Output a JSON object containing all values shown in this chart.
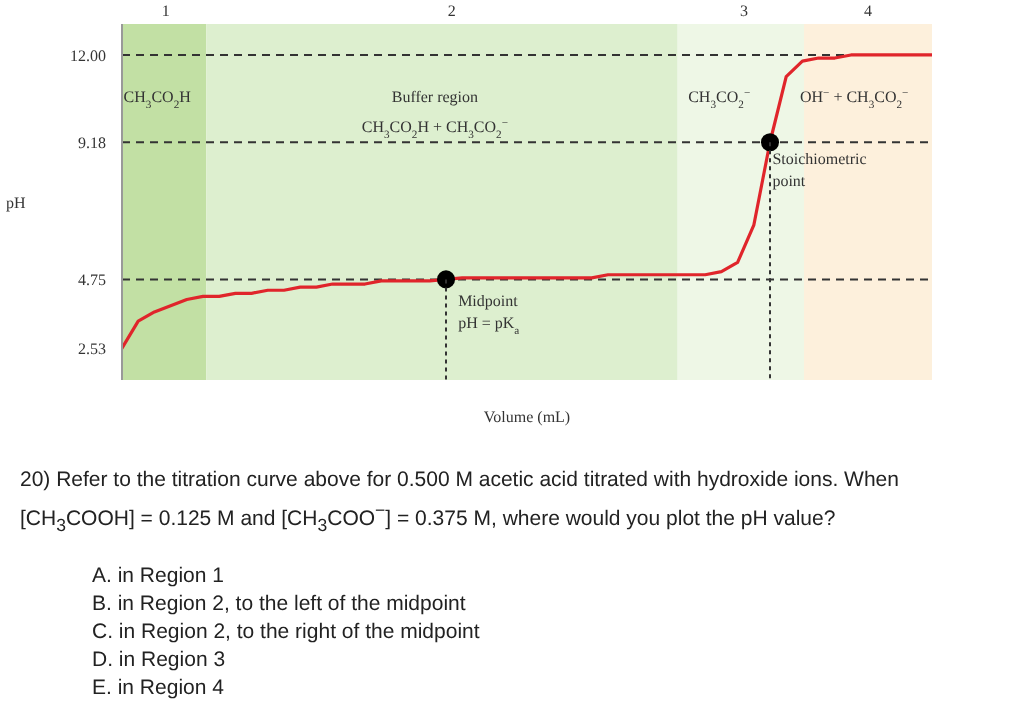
{
  "chart_data": {
    "type": "line",
    "xlabel": "Volume (mL)",
    "ylabel": "pH",
    "ylim": [
      1.5,
      13
    ],
    "yticks": [
      2.53,
      4.75,
      9.18,
      {
        "value": 12,
        "label": "12.00"
      }
    ],
    "tick_labels": "y",
    "legend": false,
    "grid": false,
    "categories": [
      null,
      null,
      null,
      null,
      null,
      null,
      null,
      null,
      null,
      null,
      null,
      null,
      null,
      null,
      null,
      null,
      null,
      null,
      null,
      null,
      null,
      null,
      null,
      null,
      null,
      null,
      null,
      null,
      null,
      null,
      null,
      null,
      null,
      null,
      null,
      null,
      null,
      null,
      null,
      null,
      null,
      null,
      null,
      null,
      null,
      null,
      null,
      null,
      null,
      null,
      null
    ],
    "series": [
      {
        "color": "#e0252b",
        "marker": "none",
        "values": [
          2.53,
          3.4,
          3.7,
          3.9,
          4.1,
          4.2,
          4.2,
          4.3,
          4.3,
          4.4,
          4.4,
          4.5,
          4.5,
          4.6,
          4.6,
          4.6,
          4.7,
          4.7,
          4.7,
          4.7,
          4.75,
          4.8,
          4.8,
          4.8,
          4.8,
          4.8,
          4.8,
          4.8,
          4.8,
          4.8,
          4.9,
          4.9,
          4.9,
          4.9,
          4.9,
          4.9,
          4.9,
          5.0,
          5.3,
          6.5,
          9.18,
          11.3,
          11.8,
          11.9,
          11.9,
          12.0,
          12.0,
          12.0,
          12.0,
          12.0,
          12.0
        ]
      },
      {
        "type": "scatter",
        "color": "#000000",
        "marker": "circle",
        "values": [
          null,
          null,
          null,
          null,
          null,
          null,
          null,
          null,
          null,
          null,
          null,
          null,
          null,
          null,
          null,
          null,
          null,
          null,
          null,
          null,
          4.75,
          null,
          null,
          null,
          null,
          null,
          null,
          null,
          null,
          null,
          null,
          null,
          null,
          null,
          null,
          null,
          null,
          null,
          null,
          null,
          9.18,
          null,
          null,
          null,
          null,
          null,
          null,
          null,
          null,
          null,
          null
        ]
      }
    ],
    "ref_lines": [
      {
        "axis": "y",
        "value": 12,
        "color": "#333333",
        "line_style": "dashed"
      },
      {
        "axis": "y",
        "value": 9.18,
        "color": "#333333",
        "line_style": "dashed"
      },
      {
        "axis": "y",
        "value": 4.75,
        "color": "#333333",
        "line_style": "dashed"
      }
    ],
    "annotations": [
      "Midpoint\npH = pK$_{a}$",
      "Stoichiometric\npoint",
      "1",
      "2",
      "3",
      "4",
      "CH$_{3}$CO$_{2}$H",
      "Buffer region",
      "CH$_{3}$CO$_{2}$H + CH$_{3}$CO$_{2}$$^{−}$",
      "CH$_{3}$CO$_{2}$$^{−}$",
      "OH$^{−}$ + CH$_{3}$CO$_{2}$$^{−}$",
      "20) Refer to the titration curve above for 0.500 M acetic acid titrated with hydroxide ions. When [CH$_{3}$COOH] = 0.125 M and [CH$_{3}$COO$^{−}$] = 0.375 M, where would you plot the pH value?",
      "A. in Region 1",
      "B. in Region 2, to the left of the midpoint",
      "C. in Region 2, to the right of the midpoint",
      "D. in Region 3",
      "E. in Region 4"
    ]
  }
}
